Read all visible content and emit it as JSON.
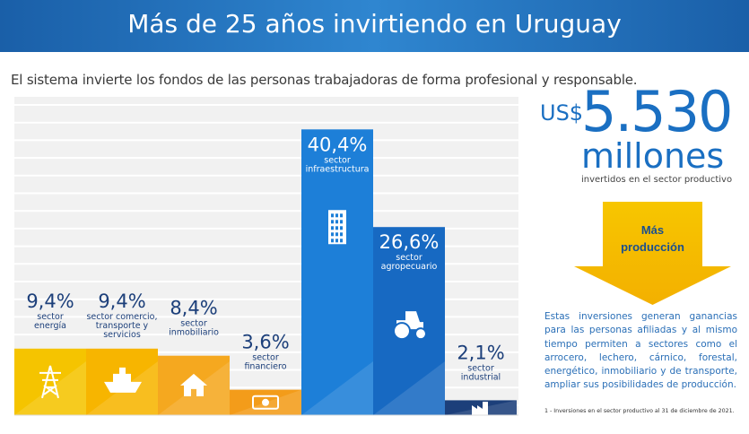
{
  "header": {
    "title": "Más de 25 años invirtiendo en Uruguay"
  },
  "subtitle": "El sistema invierte los fondos de las personas trabajadoras de forma profesional y responsable.",
  "summary": {
    "currency": "US$",
    "amount": "5.530",
    "unit": "millones",
    "note": "invertidos en el sector productivo",
    "arrow_label_1": "Más",
    "arrow_label_2": "producción",
    "description": "Estas inversiones generan ganancias para las personas afiliadas y al mismo tiempo permiten a sectores como el arrocero, lechero, cárnico, forestal, energético, inmobiliario y de transporte, ampliar sus posibilidades de producción.",
    "footnote": "1 - Inversiones en el sector productivo al 31 de diciembre de 2021."
  },
  "colors": {
    "accent": "#1a6fc2",
    "yellow": "#f5c400",
    "orange": "#f39c1a",
    "blue": "#1d7fd8",
    "navy": "#1c3f7a"
  },
  "chart_data": {
    "type": "bar",
    "title": "",
    "xlabel": "",
    "ylabel": "",
    "ylim": [
      0,
      45
    ],
    "grid": true,
    "categories": [
      "sector energía",
      "sector comercio, transporte y servicios",
      "sector inmobiliario",
      "sector financiero",
      "sector infraestructura",
      "sector agropecuario",
      "sector industrial"
    ],
    "category_lines": [
      [
        "sector",
        "energía"
      ],
      [
        "sector comercio,",
        "transporte y",
        "servicios"
      ],
      [
        "sector",
        "inmobiliario"
      ],
      [
        "sector",
        "financiero"
      ],
      [
        "sector",
        "infraestructura"
      ],
      [
        "sector",
        "agropecuario"
      ],
      [
        "sector",
        "industrial"
      ]
    ],
    "values": [
      9.4,
      9.4,
      8.4,
      3.6,
      40.4,
      26.6,
      2.1
    ],
    "value_labels": [
      "9,4%",
      "9,4%",
      "8,4%",
      "3,6%",
      "40,4%",
      "26,6%",
      "2,1%"
    ],
    "bar_colors": [
      "#f5c400",
      "#f7b500",
      "#f5a81f",
      "#f39c1a",
      "#1d7fd8",
      "#1769c2",
      "#1c3f7a"
    ],
    "icons": [
      "power-tower-icon",
      "ship-icon",
      "house-icon",
      "money-icon",
      "building-icon",
      "tractor-icon",
      "factory-icon"
    ]
  }
}
